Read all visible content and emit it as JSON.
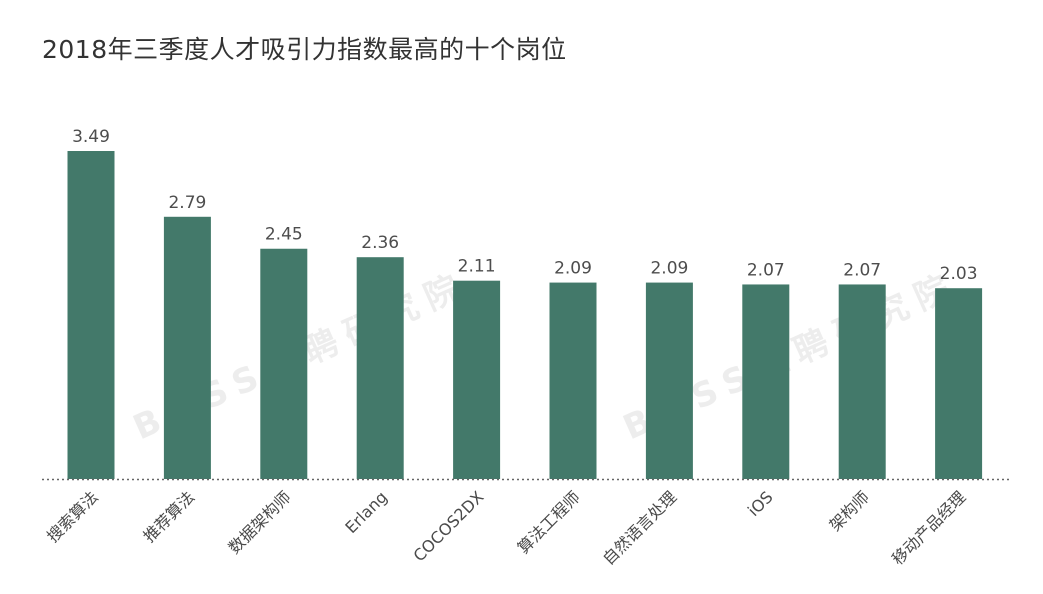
{
  "chart_data": {
    "type": "bar",
    "title": "2018年三季度人才吸引力指数最高的十个岗位",
    "categories": [
      "搜索算法",
      "推荐算法",
      "数据架构师",
      "Erlang",
      "COCOS2DX",
      "算法工程师",
      "自然语言处理",
      "iOS",
      "架构师",
      "移动产品经理"
    ],
    "values": [
      3.49,
      2.79,
      2.45,
      2.36,
      2.11,
      2.09,
      2.09,
      2.07,
      2.07,
      2.03
    ],
    "value_labels": [
      "3.49",
      "2.79",
      "2.45",
      "2.36",
      "2.11",
      "2.09",
      "2.09",
      "2.07",
      "2.07",
      "2.03"
    ],
    "xlabel": "",
    "ylabel": "",
    "ylim": [
      0,
      3.49
    ],
    "grid": false,
    "legend": "none",
    "bar_color": "#43796a",
    "watermark": "BOSS直聘研究院"
  }
}
